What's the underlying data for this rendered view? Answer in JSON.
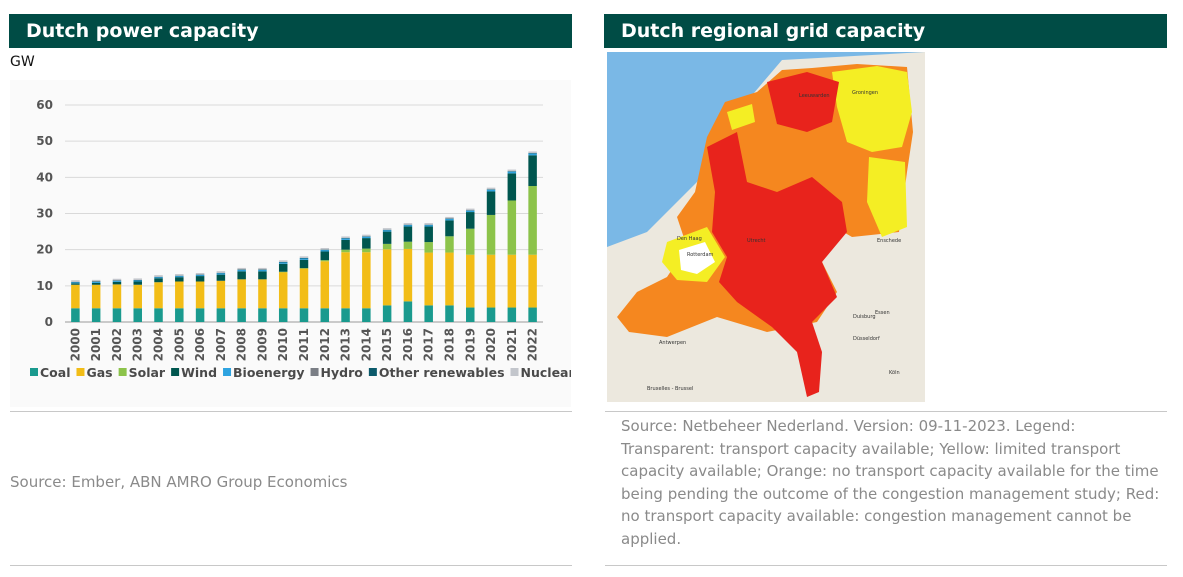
{
  "left_panel": {
    "title": "Dutch power capacity",
    "unit": "GW",
    "source": "Source: Ember, ABN AMRO Group Economics"
  },
  "right_panel": {
    "title": "Dutch regional grid capacity",
    "source": "Source: Netbeheer Nederland. Version: 09-11-2023. Legend: Transparent: transport capacity available; Yellow: limited transport capacity available; Orange: no transport capacity available for the time being pending the outcome of the congestion management study; Red: no transport capacity available: congestion management cannot be applied.",
    "map_labels": {
      "groningen": "Groningen",
      "leeuwarden": "Leeuwarden",
      "den_haag": "Den Haag",
      "rotterdam": "Rotterdam",
      "utrecht": "Utrecht",
      "enschede": "Enschede",
      "duisburg": "Duisburg",
      "essen": "Essen",
      "dusseldorf": "Düsseldorf",
      "antwerpen": "Antwerpen",
      "koln": "Köln",
      "brussel": "Bruxelles - Brussel"
    },
    "colors": {
      "sea": "#7ab8e6",
      "land": "#ece8de",
      "transparent_area": "#ffffff",
      "limited": "#f4ee24",
      "no_capacity_pending": "#f5871f",
      "no_capacity": "#e8231c"
    }
  },
  "chart_data": {
    "type": "bar",
    "stacked": true,
    "categories": [
      "2000",
      "2001",
      "2002",
      "2003",
      "2004",
      "2005",
      "2006",
      "2007",
      "2008",
      "2009",
      "2010",
      "2011",
      "2012",
      "2013",
      "2014",
      "2015",
      "2016",
      "2017",
      "2018",
      "2019",
      "2020",
      "2021",
      "2022"
    ],
    "ylim": [
      0,
      60
    ],
    "yticks": [
      0,
      10,
      20,
      30,
      40,
      50,
      60
    ],
    "grid": true,
    "legend_position": "bottom",
    "series": [
      {
        "name": "Coal",
        "color": "#1a9a8e",
        "values": [
          3.8,
          3.8,
          3.8,
          3.8,
          3.8,
          3.8,
          3.8,
          3.8,
          3.8,
          3.8,
          3.8,
          3.8,
          3.8,
          3.8,
          3.8,
          4.6,
          5.7,
          4.6,
          4.6,
          4.0,
          4.0,
          4.0,
          4.0
        ]
      },
      {
        "name": "Gas",
        "color": "#f2bd17",
        "values": [
          6.5,
          6.5,
          6.6,
          6.5,
          7.2,
          7.4,
          7.4,
          7.6,
          8.0,
          8.0,
          10.0,
          11.0,
          13.0,
          15.5,
          15.5,
          15.5,
          14.5,
          14.6,
          14.6,
          14.6,
          14.6,
          14.6,
          14.6
        ]
      },
      {
        "name": "Solar",
        "color": "#8cc34a",
        "values": [
          0,
          0,
          0,
          0,
          0,
          0,
          0,
          0,
          0,
          0,
          0.1,
          0.1,
          0.3,
          0.7,
          1.0,
          1.5,
          2.0,
          2.9,
          4.5,
          7.2,
          11.0,
          15.0,
          19.0
        ]
      },
      {
        "name": "Wind",
        "color": "#00564f",
        "values": [
          0.4,
          0.5,
          0.7,
          0.9,
          1.1,
          1.2,
          1.5,
          1.7,
          2.2,
          2.2,
          2.2,
          2.3,
          2.4,
          2.7,
          2.9,
          3.4,
          4.2,
          4.3,
          4.4,
          4.6,
          6.5,
          7.5,
          8.5
        ]
      },
      {
        "name": "Bioenergy",
        "color": "#2ea3e0",
        "values": [
          0.3,
          0.3,
          0.3,
          0.3,
          0.3,
          0.3,
          0.3,
          0.4,
          0.4,
          0.4,
          0.4,
          0.4,
          0.4,
          0.4,
          0.4,
          0.4,
          0.4,
          0.4,
          0.4,
          0.4,
          0.5,
          0.5,
          0.5
        ]
      },
      {
        "name": "Hydro",
        "color": "#7a7e85",
        "values": [
          0,
          0,
          0,
          0,
          0,
          0,
          0,
          0,
          0,
          0,
          0,
          0,
          0,
          0,
          0,
          0,
          0,
          0,
          0,
          0,
          0,
          0,
          0
        ]
      },
      {
        "name": "Other renewables",
        "color": "#0b5a6b",
        "values": [
          0.1,
          0.1,
          0.1,
          0.1,
          0.1,
          0.1,
          0.1,
          0.1,
          0.1,
          0.1,
          0.1,
          0.1,
          0.1,
          0.1,
          0.1,
          0.1,
          0.1,
          0.1,
          0.1,
          0.1,
          0.1,
          0.1,
          0.1
        ]
      },
      {
        "name": "Nuclear",
        "color": "#c3c6cc",
        "values": [
          0.45,
          0.45,
          0.45,
          0.45,
          0.45,
          0.45,
          0.45,
          0.45,
          0.45,
          0.45,
          0.45,
          0.45,
          0.45,
          0.45,
          0.45,
          0.45,
          0.45,
          0.45,
          0.45,
          0.45,
          0.45,
          0.45,
          0.45
        ]
      }
    ]
  }
}
